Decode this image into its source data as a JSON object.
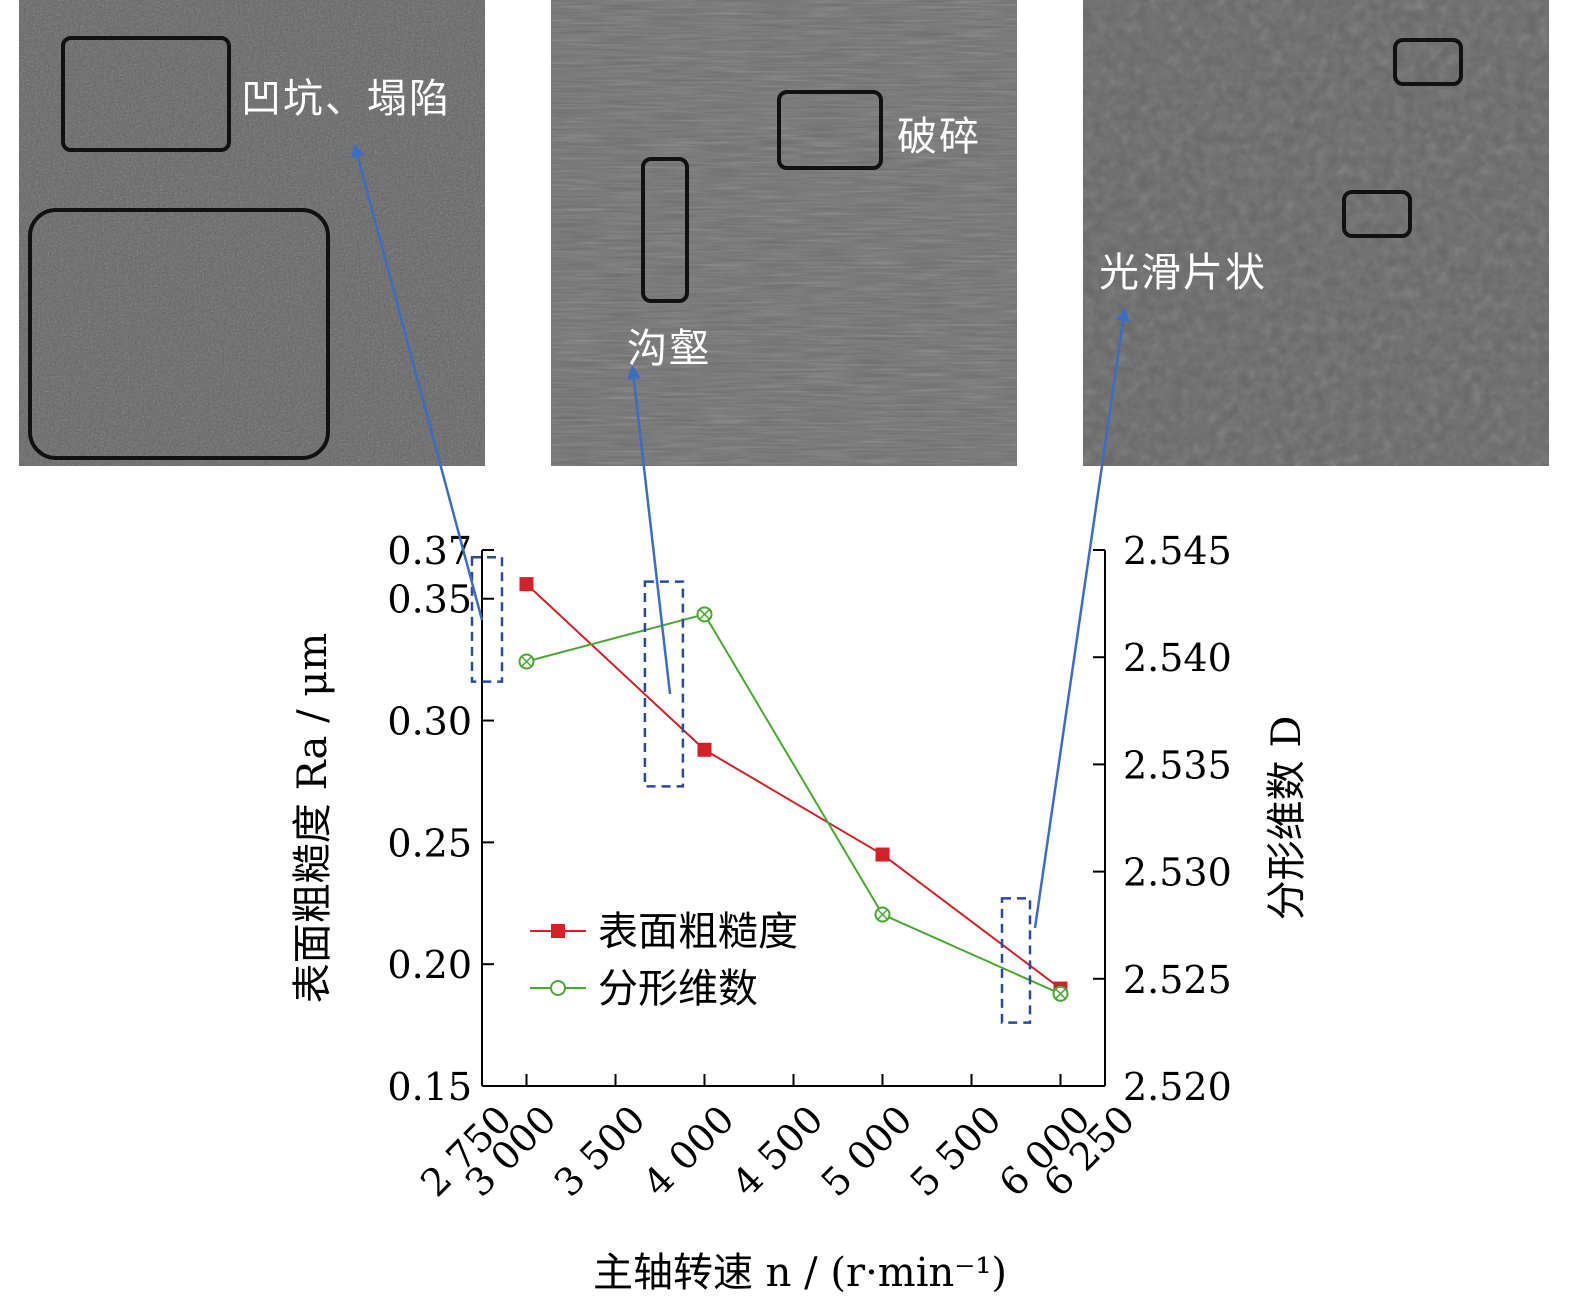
{
  "micrographs": [
    {
      "id": "3000",
      "labels": [
        "凹坑、塌陷"
      ]
    },
    {
      "id": "4000",
      "labels": [
        "破碎",
        "沟壑"
      ]
    },
    {
      "id": "6000",
      "labels": [
        "光滑片状"
      ]
    }
  ],
  "chart_data": {
    "type": "line",
    "x": [
      3000,
      4000,
      5000,
      6000
    ],
    "xlim": [
      2750,
      6250
    ],
    "x_ticks": [
      2750,
      3000,
      3500,
      4000,
      4500,
      5000,
      5500,
      6000,
      6250
    ],
    "x_tick_labels": [
      "2 750",
      "3 000",
      "3 500",
      "4 000",
      "4 500",
      "5 000",
      "5 500",
      "6 000",
      "6 250"
    ],
    "xlabel": "主轴转速 n / (r·min⁻¹)",
    "ylabel_left": "表面粗糙度 Ra / μm",
    "ylabel_right": "分形维数 D",
    "ylim_left": [
      0.15,
      0.37
    ],
    "ylim_right": [
      2.52,
      2.545
    ],
    "y_left_ticks": [
      0.15,
      0.2,
      0.25,
      0.3,
      0.35,
      0.37
    ],
    "y_left_tick_labels": [
      "0.15",
      "0.20",
      "0.25",
      "0.30",
      "0.35",
      "0.37"
    ],
    "y_right_ticks": [
      2.52,
      2.525,
      2.53,
      2.535,
      2.54,
      2.545
    ],
    "y_right_tick_labels": [
      "2.520",
      "2.525",
      "2.530",
      "2.535",
      "2.540",
      "2.545"
    ],
    "series": [
      {
        "name": "表面粗糙度",
        "axis": "left",
        "color": "#d42027",
        "marker": "square",
        "values": [
          0.356,
          0.288,
          0.245,
          0.19
        ]
      },
      {
        "name": "分形维数",
        "axis": "right",
        "color": "#4aa832",
        "marker": "circle-x",
        "values": [
          2.5398,
          2.542,
          2.528,
          2.5243
        ]
      }
    ],
    "legend": "lower-left",
    "grid": false,
    "annotation_arrow_color": "#3c6cc4",
    "highlight_box_color": "#2c4a9a"
  }
}
